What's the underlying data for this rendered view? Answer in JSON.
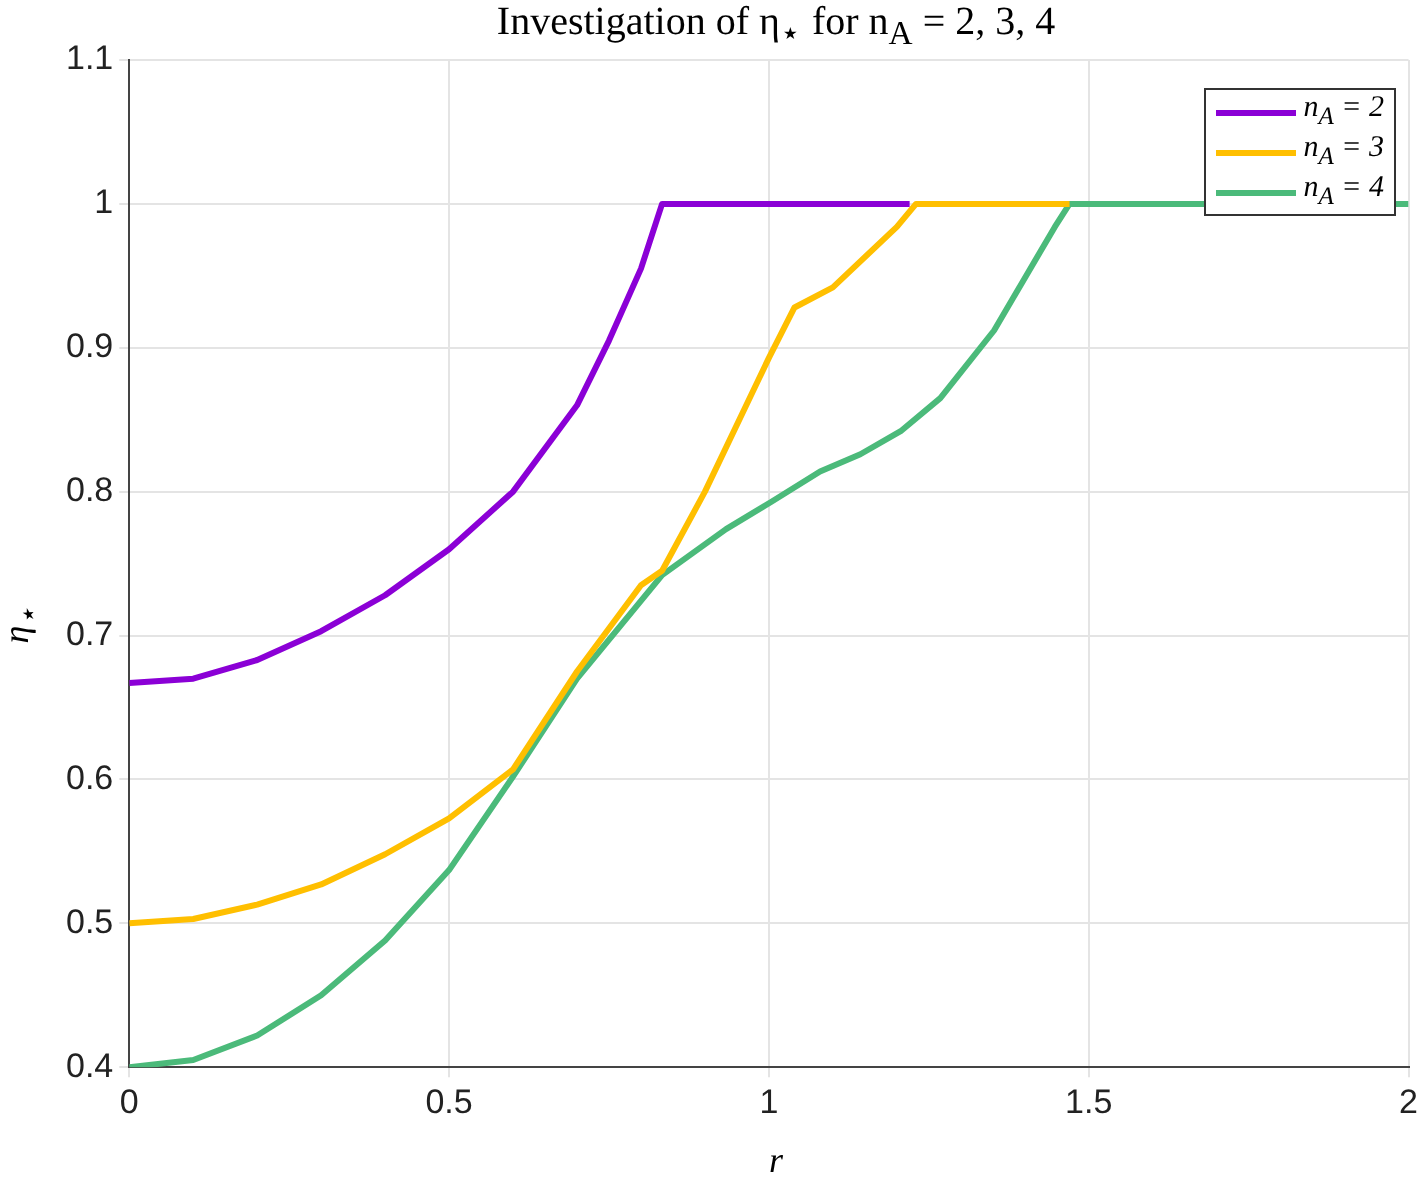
{
  "chart_data": {
    "type": "line",
    "title": "Investigation of η$_{⋆}$ for n$_{A}$ = 2, 3, 4",
    "xlabel": "r",
    "ylabel": "η$_{⋆}$",
    "xlim": [
      0,
      2
    ],
    "xticks": [
      0,
      0.5,
      1,
      1.5,
      2
    ],
    "ylim": [
      0.4,
      1.1
    ],
    "yticks": [
      0.4,
      0.5,
      0.6,
      0.7,
      0.8,
      0.9,
      1,
      1.1
    ],
    "grid": true,
    "legend": "top right",
    "marker": "none",
    "line_style": "solid",
    "series": [
      {
        "name": "n$_{A}$ = 2",
        "color": "#8b00d6",
        "x": [
          0,
          0.1,
          0.2,
          0.3,
          0.4,
          0.5,
          0.6,
          0.7,
          0.75,
          0.8,
          0.833,
          1.22
        ],
        "values": [
          0.667,
          0.67,
          0.683,
          0.703,
          0.728,
          0.76,
          0.8,
          0.86,
          0.905,
          0.955,
          1,
          1
        ]
      },
      {
        "name": "n$_{A}$ = 3",
        "color": "#ffbf00",
        "x": [
          0,
          0.1,
          0.2,
          0.3,
          0.4,
          0.5,
          0.6,
          0.7,
          0.8,
          0.833,
          0.9,
          1,
          1.04,
          1.1,
          1.2,
          1.23,
          1.47
        ],
        "values": [
          0.5,
          0.503,
          0.513,
          0.527,
          0.548,
          0.573,
          0.607,
          0.675,
          0.735,
          0.745,
          0.8,
          0.893,
          0.928,
          0.942,
          0.984,
          1,
          1
        ]
      },
      {
        "name": "n$_{A}$ = 4",
        "color": "#4bba7a",
        "x": [
          0,
          0.1,
          0.2,
          0.3,
          0.4,
          0.5,
          0.6,
          0.7,
          0.833,
          0.933,
          1.004,
          1.08,
          1.143,
          1.206,
          1.268,
          1.352,
          1.447,
          1.47,
          2
        ],
        "values": [
          0.4,
          0.405,
          0.422,
          0.45,
          0.488,
          0.537,
          0.602,
          0.67,
          0.742,
          0.774,
          0.793,
          0.814,
          0.826,
          0.842,
          0.865,
          0.912,
          0.984,
          1,
          1
        ]
      }
    ]
  }
}
